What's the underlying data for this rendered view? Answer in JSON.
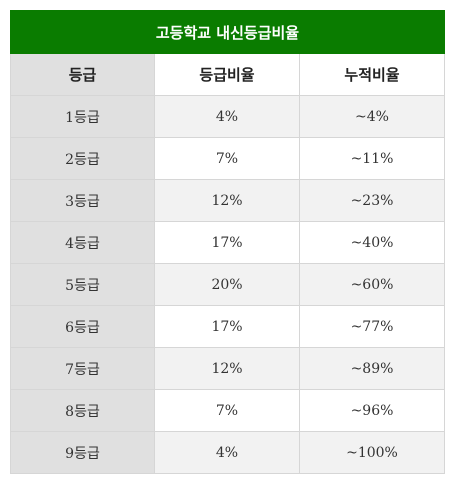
{
  "table": {
    "title": "고등학교 내신등급비율",
    "headers": [
      "등급",
      "등급비율",
      "누적비율"
    ],
    "rows": [
      {
        "grade": "1등급",
        "ratio": "4%",
        "cumulative": "~4%"
      },
      {
        "grade": "2등급",
        "ratio": "7%",
        "cumulative": "~11%"
      },
      {
        "grade": "3등급",
        "ratio": "12%",
        "cumulative": "~23%"
      },
      {
        "grade": "4등급",
        "ratio": "17%",
        "cumulative": "~40%"
      },
      {
        "grade": "5등급",
        "ratio": "20%",
        "cumulative": "~60%"
      },
      {
        "grade": "6등급",
        "ratio": "17%",
        "cumulative": "~77%"
      },
      {
        "grade": "7등급",
        "ratio": "12%",
        "cumulative": "~89%"
      },
      {
        "grade": "8등급",
        "ratio": "7%",
        "cumulative": "~96%"
      },
      {
        "grade": "9등급",
        "ratio": "4%",
        "cumulative": "~100%"
      }
    ]
  },
  "colors": {
    "title_bg": "#0a7c00",
    "grade_col_bg": "#e0e0e0",
    "stripe_bg": "#f2f2f2"
  }
}
